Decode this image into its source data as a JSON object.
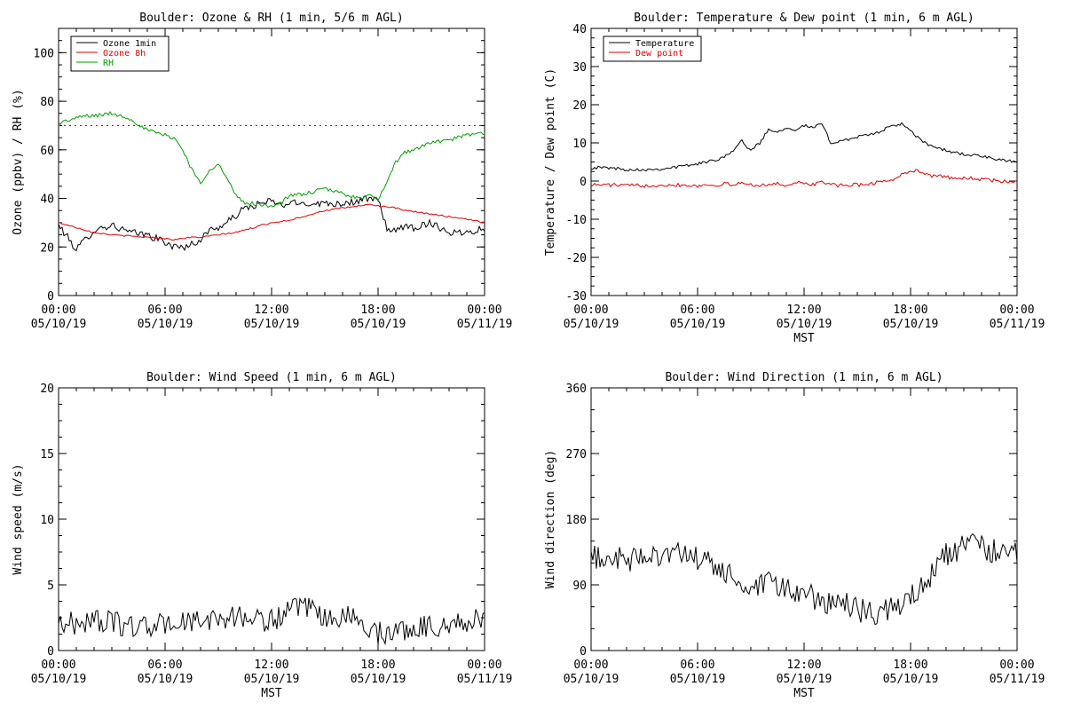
{
  "colors": {
    "black": "#000000",
    "red": "#e00000",
    "green": "#00a000"
  },
  "x_tick_labels": {
    "times": [
      "00:00",
      "06:00",
      "12:00",
      "18:00",
      "00:00"
    ],
    "dates": [
      "05/10/19",
      "05/10/19",
      "05/10/19",
      "05/10/19",
      "05/11/19"
    ]
  },
  "chart_data": [
    {
      "type": "line",
      "title": "Boulder: Ozone & RH (1 min, 5/6 m AGL)",
      "xlabel": "",
      "ylabel": "Ozone (ppbv) / RH (%)",
      "x_hours": [
        0,
        1,
        1.5,
        2,
        3,
        4,
        5,
        6,
        6.5,
        7,
        7.5,
        8,
        8.5,
        9,
        9.5,
        10,
        10.5,
        11,
        11.5,
        12,
        12.5,
        13,
        14,
        15,
        16,
        17,
        17.5,
        18,
        18.5,
        19,
        19.5,
        20,
        21,
        22,
        23,
        24
      ],
      "xlim": [
        0,
        24
      ],
      "ylim": [
        0,
        110
      ],
      "yticks": [
        0,
        20,
        40,
        60,
        80,
        100
      ],
      "legend": "top-left",
      "reference_line": {
        "value": 70,
        "style": "dotted",
        "color": "red"
      },
      "series": [
        {
          "name": "Ozone 1min",
          "color": "black",
          "values": [
            29,
            19,
            23,
            27,
            29,
            26,
            25,
            22,
            20,
            20,
            21,
            23,
            27,
            28,
            30,
            33,
            36,
            37,
            38,
            39,
            37,
            38,
            38,
            38,
            38,
            39,
            40,
            39,
            28,
            26,
            29,
            28,
            30,
            26,
            26,
            28
          ]
        },
        {
          "name": "Ozone 8h",
          "color": "red",
          "values": [
            30,
            28,
            27,
            26,
            25,
            24.5,
            24,
            23.5,
            23,
            23.5,
            24,
            24,
            24.5,
            25,
            25.5,
            26,
            27,
            28,
            29,
            30,
            30.5,
            31,
            33,
            35,
            36,
            37,
            37.5,
            37,
            36.5,
            36,
            35,
            34.5,
            33.5,
            32.5,
            31.5,
            30
          ]
        },
        {
          "name": "RH",
          "color": "green",
          "values": [
            71,
            73,
            74,
            74,
            75,
            73,
            68,
            66,
            65,
            60,
            52,
            46,
            52,
            54,
            48,
            41,
            38,
            38,
            37,
            37,
            38,
            41,
            42,
            44,
            42,
            40,
            41,
            40,
            46,
            55,
            59,
            60,
            63,
            64,
            66,
            67
          ]
        }
      ]
    },
    {
      "type": "line",
      "title": "Boulder: Temperature & Dew point (1 min, 6 m AGL)",
      "xlabel": "MST",
      "ylabel": "Temperature / Dew point (C)",
      "x_hours": [
        0,
        1,
        2,
        3,
        4,
        5,
        6,
        7,
        7.5,
        8,
        8.5,
        9,
        9.5,
        10,
        10.5,
        11,
        11.5,
        12,
        12.5,
        13,
        13.5,
        14,
        15,
        16,
        16.5,
        17,
        17.5,
        18,
        18.5,
        19,
        20,
        21,
        22,
        23,
        24
      ],
      "xlim": [
        0,
        24
      ],
      "ylim": [
        -30,
        40
      ],
      "yticks": [
        -30,
        -20,
        -10,
        0,
        10,
        20,
        30,
        40
      ],
      "legend": "top-left",
      "series": [
        {
          "name": "Temperature",
          "color": "black",
          "values": [
            3.5,
            3.5,
            3,
            3,
            3.2,
            3.8,
            4.5,
            5.5,
            6.5,
            8,
            10.5,
            8,
            10,
            13.5,
            13,
            14,
            13.5,
            14.5,
            14,
            15,
            10,
            10.5,
            11.5,
            12.5,
            13.5,
            14.5,
            15,
            13,
            11,
            9.5,
            8,
            7,
            6.5,
            5.5,
            5
          ]
        },
        {
          "name": "Dew point",
          "color": "red",
          "values": [
            -1,
            -1,
            -1.2,
            -1.2,
            -1,
            -1,
            -1.2,
            -1,
            -0.8,
            -1,
            -0.5,
            -1,
            -1,
            -1,
            -0.8,
            -1,
            -0.5,
            -0.5,
            -1,
            0,
            -1,
            -1.2,
            -1,
            -0.5,
            0,
            0.5,
            1.5,
            3,
            2.5,
            1.5,
            1,
            0.8,
            0.5,
            0,
            -0.5
          ]
        }
      ]
    },
    {
      "type": "line",
      "title": "Boulder: Wind Speed (1 min, 6 m AGL)",
      "xlabel": "MST",
      "ylabel": "Wind speed (m/s)",
      "x_hours": [
        0,
        1,
        2,
        3,
        4,
        5,
        6,
        7,
        8,
        9,
        10,
        11,
        12,
        13,
        14,
        15,
        16,
        17,
        18,
        19,
        20,
        21,
        22,
        23,
        24
      ],
      "xlim": [
        0,
        24
      ],
      "ylim": [
        0,
        20
      ],
      "yticks": [
        0,
        5,
        10,
        15,
        20
      ],
      "series": [
        {
          "name": "",
          "color": "black",
          "values": [
            2.2,
            2.0,
            2.4,
            2.1,
            1.9,
            1.8,
            2.0,
            2.2,
            2.1,
            2.5,
            2.6,
            2.4,
            2.3,
            3.0,
            3.2,
            2.4,
            2.6,
            2.3,
            1.3,
            1.5,
            1.7,
            1.9,
            2.0,
            2.2,
            2.3
          ]
        }
      ]
    },
    {
      "type": "line",
      "title": "Boulder: Wind Direction (1 min, 6 m AGL)",
      "xlabel": "MST",
      "ylabel": "Wind direction (deg)",
      "x_hours": [
        0,
        1,
        2,
        3,
        4,
        5,
        6,
        7,
        8,
        9,
        10,
        11,
        12,
        13,
        14,
        15,
        16,
        17,
        18,
        19,
        20,
        21,
        22,
        23,
        24
      ],
      "xlim": [
        0,
        24
      ],
      "ylim": [
        0,
        360
      ],
      "yticks": [
        0,
        90,
        180,
        270,
        360
      ],
      "series": [
        {
          "name": "",
          "color": "black",
          "values": [
            125,
            130,
            120,
            130,
            135,
            130,
            125,
            115,
            100,
            80,
            90,
            85,
            75,
            70,
            65,
            55,
            50,
            60,
            70,
            100,
            130,
            145,
            140,
            135,
            130
          ]
        }
      ]
    }
  ]
}
